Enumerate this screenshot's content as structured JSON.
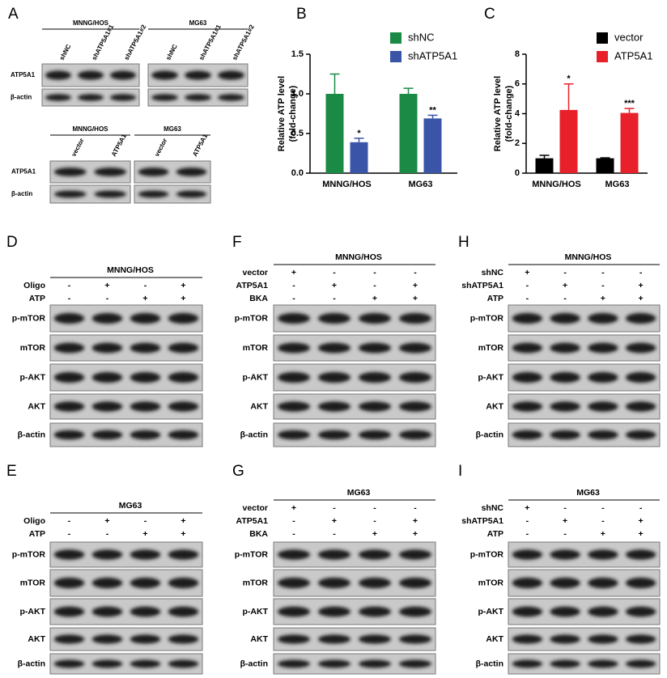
{
  "panel_a": {
    "letter": "A",
    "top": {
      "groups": [
        {
          "name": "MNNG/HOS",
          "lanes": [
            "shNC",
            "shATP5A1#1",
            "shATP5A1#2"
          ]
        },
        {
          "name": "MG63",
          "lanes": [
            "shNC",
            "shATP5A1#1",
            "shATP5A1#2"
          ]
        }
      ],
      "rows": [
        "ATP5A1",
        "β-actin"
      ]
    },
    "bottom": {
      "groups": [
        {
          "name": "MNNG/HOS",
          "lanes": [
            "vector",
            "ATP5A1"
          ]
        },
        {
          "name": "MG63",
          "lanes": [
            "vector",
            "ATP5A1"
          ]
        }
      ],
      "rows": [
        "ATP5A1",
        "β-actin"
      ]
    }
  },
  "blot_panels": [
    {
      "letter": "D",
      "title": "MNNG/HOS",
      "conditions": [
        {
          "name": "Oligo",
          "signs": [
            "-",
            "+",
            "-",
            "+"
          ]
        },
        {
          "name": "ATP",
          "signs": [
            "-",
            "-",
            "+",
            "+"
          ]
        }
      ],
      "rows": [
        "p-mTOR",
        "mTOR",
        "p-AKT",
        "AKT",
        "β-actin"
      ]
    },
    {
      "letter": "F",
      "title": "MNNG/HOS",
      "conditions": [
        {
          "name": "vector",
          "signs": [
            "+",
            "-",
            "-",
            "-"
          ]
        },
        {
          "name": "ATP5A1",
          "signs": [
            "-",
            "+",
            "-",
            "+"
          ]
        },
        {
          "name": "BKA",
          "signs": [
            "-",
            "-",
            "+",
            "+"
          ]
        }
      ],
      "rows": [
        "p-mTOR",
        "mTOR",
        "p-AKT",
        "AKT",
        "β-actin"
      ]
    },
    {
      "letter": "H",
      "title": "MNNG/HOS",
      "conditions": [
        {
          "name": "shNC",
          "signs": [
            "+",
            "-",
            "-",
            "-"
          ]
        },
        {
          "name": "shATP5A1",
          "signs": [
            "-",
            "+",
            "-",
            "+"
          ]
        },
        {
          "name": "ATP",
          "signs": [
            "-",
            "-",
            "+",
            "+"
          ]
        }
      ],
      "rows": [
        "p-mTOR",
        "mTOR",
        "p-AKT",
        "AKT",
        "β-actin"
      ]
    },
    {
      "letter": "E",
      "title": "MG63",
      "conditions": [
        {
          "name": "Oligo",
          "signs": [
            "-",
            "+",
            "-",
            "+"
          ]
        },
        {
          "name": "ATP",
          "signs": [
            "-",
            "-",
            "+",
            "+"
          ]
        }
      ],
      "rows": [
        "p-mTOR",
        "mTOR",
        "p-AKT",
        "AKT",
        "β-actin"
      ]
    },
    {
      "letter": "G",
      "title": "MG63",
      "conditions": [
        {
          "name": "vector",
          "signs": [
            "+",
            "-",
            "-",
            "-"
          ]
        },
        {
          "name": "ATP5A1",
          "signs": [
            "-",
            "+",
            "-",
            "+"
          ]
        },
        {
          "name": "BKA",
          "signs": [
            "-",
            "-",
            "+",
            "+"
          ]
        }
      ],
      "rows": [
        "p-mTOR",
        "mTOR",
        "p-AKT",
        "AKT",
        "β-actin"
      ]
    },
    {
      "letter": "I",
      "title": "MG63",
      "conditions": [
        {
          "name": "shNC",
          "signs": [
            "+",
            "-",
            "-",
            "-"
          ]
        },
        {
          "name": "shATP5A1",
          "signs": [
            "-",
            "+",
            "-",
            "+"
          ]
        },
        {
          "name": "ATP",
          "signs": [
            "-",
            "-",
            "+",
            "+"
          ]
        }
      ],
      "rows": [
        "p-mTOR",
        "mTOR",
        "p-AKT",
        "AKT",
        "β-actin"
      ]
    }
  ],
  "chart_data": [
    {
      "type": "bar",
      "panel_label": "B",
      "ylabel": [
        "Relative ATP level",
        "(fold-change)"
      ],
      "categories": [
        "MNNG/HOS",
        "MG63"
      ],
      "series": [
        {
          "name": "shNC",
          "color": "#1a8a45",
          "values": [
            1.0,
            1.0
          ],
          "errors": [
            0.25,
            0.07
          ],
          "significance": [
            null,
            null
          ]
        },
        {
          "name": "shATP5A1",
          "color": "#3a55a8",
          "values": [
            0.39,
            0.69
          ],
          "errors": [
            0.05,
            0.04
          ],
          "significance": [
            "*",
            "**"
          ]
        }
      ],
      "ylim": [
        0,
        1.5
      ],
      "yticks": [
        {
          "value": 0,
          "label": "0.0"
        },
        0.5,
        {
          "value": 1,
          "label": "1.0"
        },
        1.5
      ],
      "legend": "top-right"
    },
    {
      "type": "bar",
      "panel_label": "C",
      "ylabel": [
        "Relative ATP level",
        "(fold-change)"
      ],
      "categories": [
        "MNNG/HOS",
        "MG63"
      ],
      "series": [
        {
          "name": "vector",
          "color": "#000000",
          "values": [
            1.0,
            1.0
          ],
          "errors": [
            0.2,
            0.03
          ],
          "significance": [
            null,
            null
          ]
        },
        {
          "name": "ATP5A1",
          "color": "#e8202a",
          "values": [
            4.25,
            4.05
          ],
          "errors": [
            1.75,
            0.3
          ],
          "significance": [
            "*",
            "***"
          ]
        }
      ],
      "ylim": [
        0,
        8
      ],
      "yticks": [
        0,
        2,
        4,
        6,
        8
      ],
      "legend": "top-right"
    }
  ]
}
